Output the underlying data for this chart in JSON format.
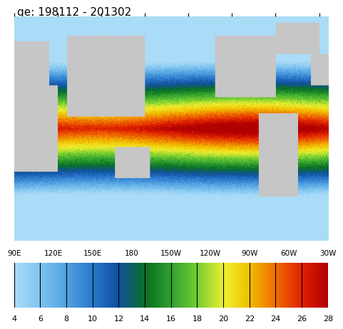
{
  "title": "ge: 198112 - 201302",
  "colorbar_min": 4,
  "colorbar_max": 28,
  "colorbar_ticks": [
    4,
    6,
    8,
    10,
    12,
    14,
    16,
    18,
    20,
    22,
    24,
    26,
    28
  ],
  "lon_labels": [
    "90E",
    "120E",
    "150E",
    "180",
    "150W",
    "120W",
    "90W",
    "60W",
    "30W"
  ],
  "colorbar_colors": [
    "#add8f7",
    "#9bcef5",
    "#87c4f3",
    "#6fb8f0",
    "#55aaed",
    "#3d9ce8",
    "#2b8fe0",
    "#1a80d4",
    "#0f72c4",
    "#1465b4",
    "#1a58a2",
    "#204d92",
    "#274082",
    "#2e3472",
    "#3a5f30",
    "#3d7a2a",
    "#409624",
    "#5aaf1e",
    "#7ac818",
    "#9ad814",
    "#b8e810",
    "#d4f40c",
    "#eef808",
    "#f8e808",
    "#f8cc08",
    "#f8b008",
    "#f89008",
    "#f87008",
    "#f85008",
    "#f82808",
    "#e81010",
    "#cc0808",
    "#b00404",
    "#940202"
  ],
  "background_color": "#d0e8f0",
  "land_color": "#c8c8c8",
  "map_bg": "#b8d8e8"
}
